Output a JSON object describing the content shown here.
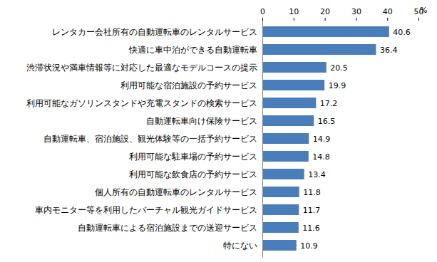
{
  "chart_data": {
    "type": "bar",
    "orientation": "horizontal",
    "x_label": "%",
    "categories": [
      "レンタカー会社所有の自動運転車のレンタルサービス",
      "快適に車中泊ができる自動運転車",
      "渋滞状況や満車情報等に対応した最適なモデルコースの提示",
      "利用可能な宿泊施設の予約サービス",
      "利用可能なガソリンスタンドや充電スタンドの検索サービス",
      "自動運転車向け保険サービス",
      "自動運転車、宿泊施設、観光体験等の一括予約サービス",
      "利用可能な駐車場の予約サービス",
      "利用可能な飲食店の予約サービス",
      "個人所有の自動運転車のレンタルサービス",
      "車内モニター等を利用したバーチャル観光ガイドサービス",
      "自動運転車による宿泊施設までの送迎サービス",
      "特にない"
    ],
    "values": [
      40.6,
      36.4,
      20.5,
      19.9,
      17.2,
      16.5,
      14.9,
      14.8,
      13.4,
      11.8,
      11.7,
      11.6,
      10.9
    ],
    "color": "#4a7ebb",
    "xlim": [
      0,
      50
    ],
    "xticks": [
      0,
      10,
      20,
      30,
      40,
      50
    ],
    "grid": false,
    "data_labels": true
  }
}
